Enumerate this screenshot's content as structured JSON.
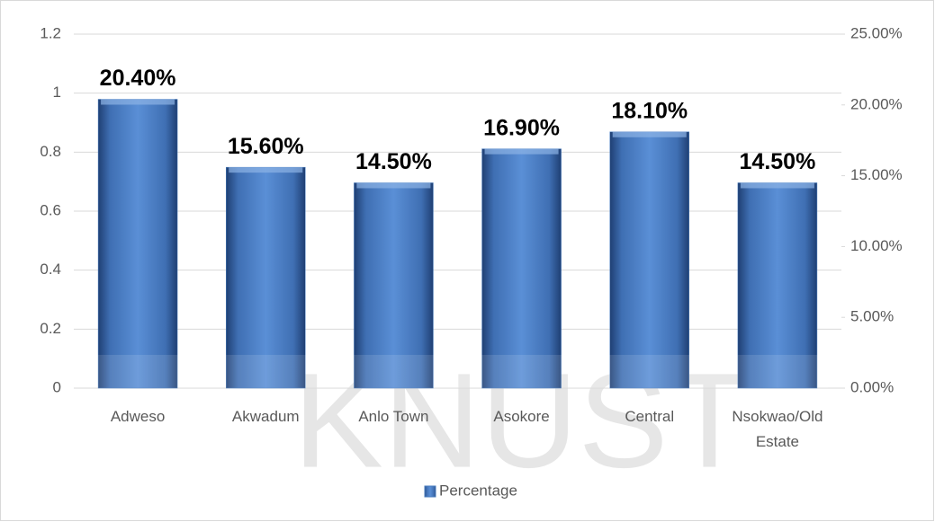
{
  "chart_data": {
    "type": "bar",
    "categories": [
      "Adweso",
      "Akwadum",
      "Anlo Town",
      "Asokore",
      "Central",
      "Nsokwao/Old Estate"
    ],
    "series": [
      {
        "name": "Percentage",
        "color": "#4a7ebf",
        "axis": "y2",
        "values": [
          20.4,
          15.6,
          14.5,
          16.9,
          18.1,
          14.5
        ],
        "value_labels": [
          "20.40%",
          "15.60%",
          "14.50%",
          "16.90%",
          "18.10%",
          "14.50%"
        ]
      }
    ],
    "ylim": [
      0,
      1.2
    ],
    "yticks": [
      0,
      0.2,
      0.4,
      0.6,
      0.8,
      1,
      1.2
    ],
    "y2lim": [
      0,
      25
    ],
    "y2ticks": [
      {
        "value": 0,
        "label": "0.00%"
      },
      {
        "value": 5,
        "label": "5.00%"
      },
      {
        "value": 10,
        "label": "10.00%"
      },
      {
        "value": 15,
        "label": "15.00%"
      },
      {
        "value": 20,
        "label": "20.00%"
      },
      {
        "value": 25,
        "label": "25.00%"
      }
    ],
    "grid": true,
    "legend": "bottom",
    "watermark": "KNUST"
  }
}
